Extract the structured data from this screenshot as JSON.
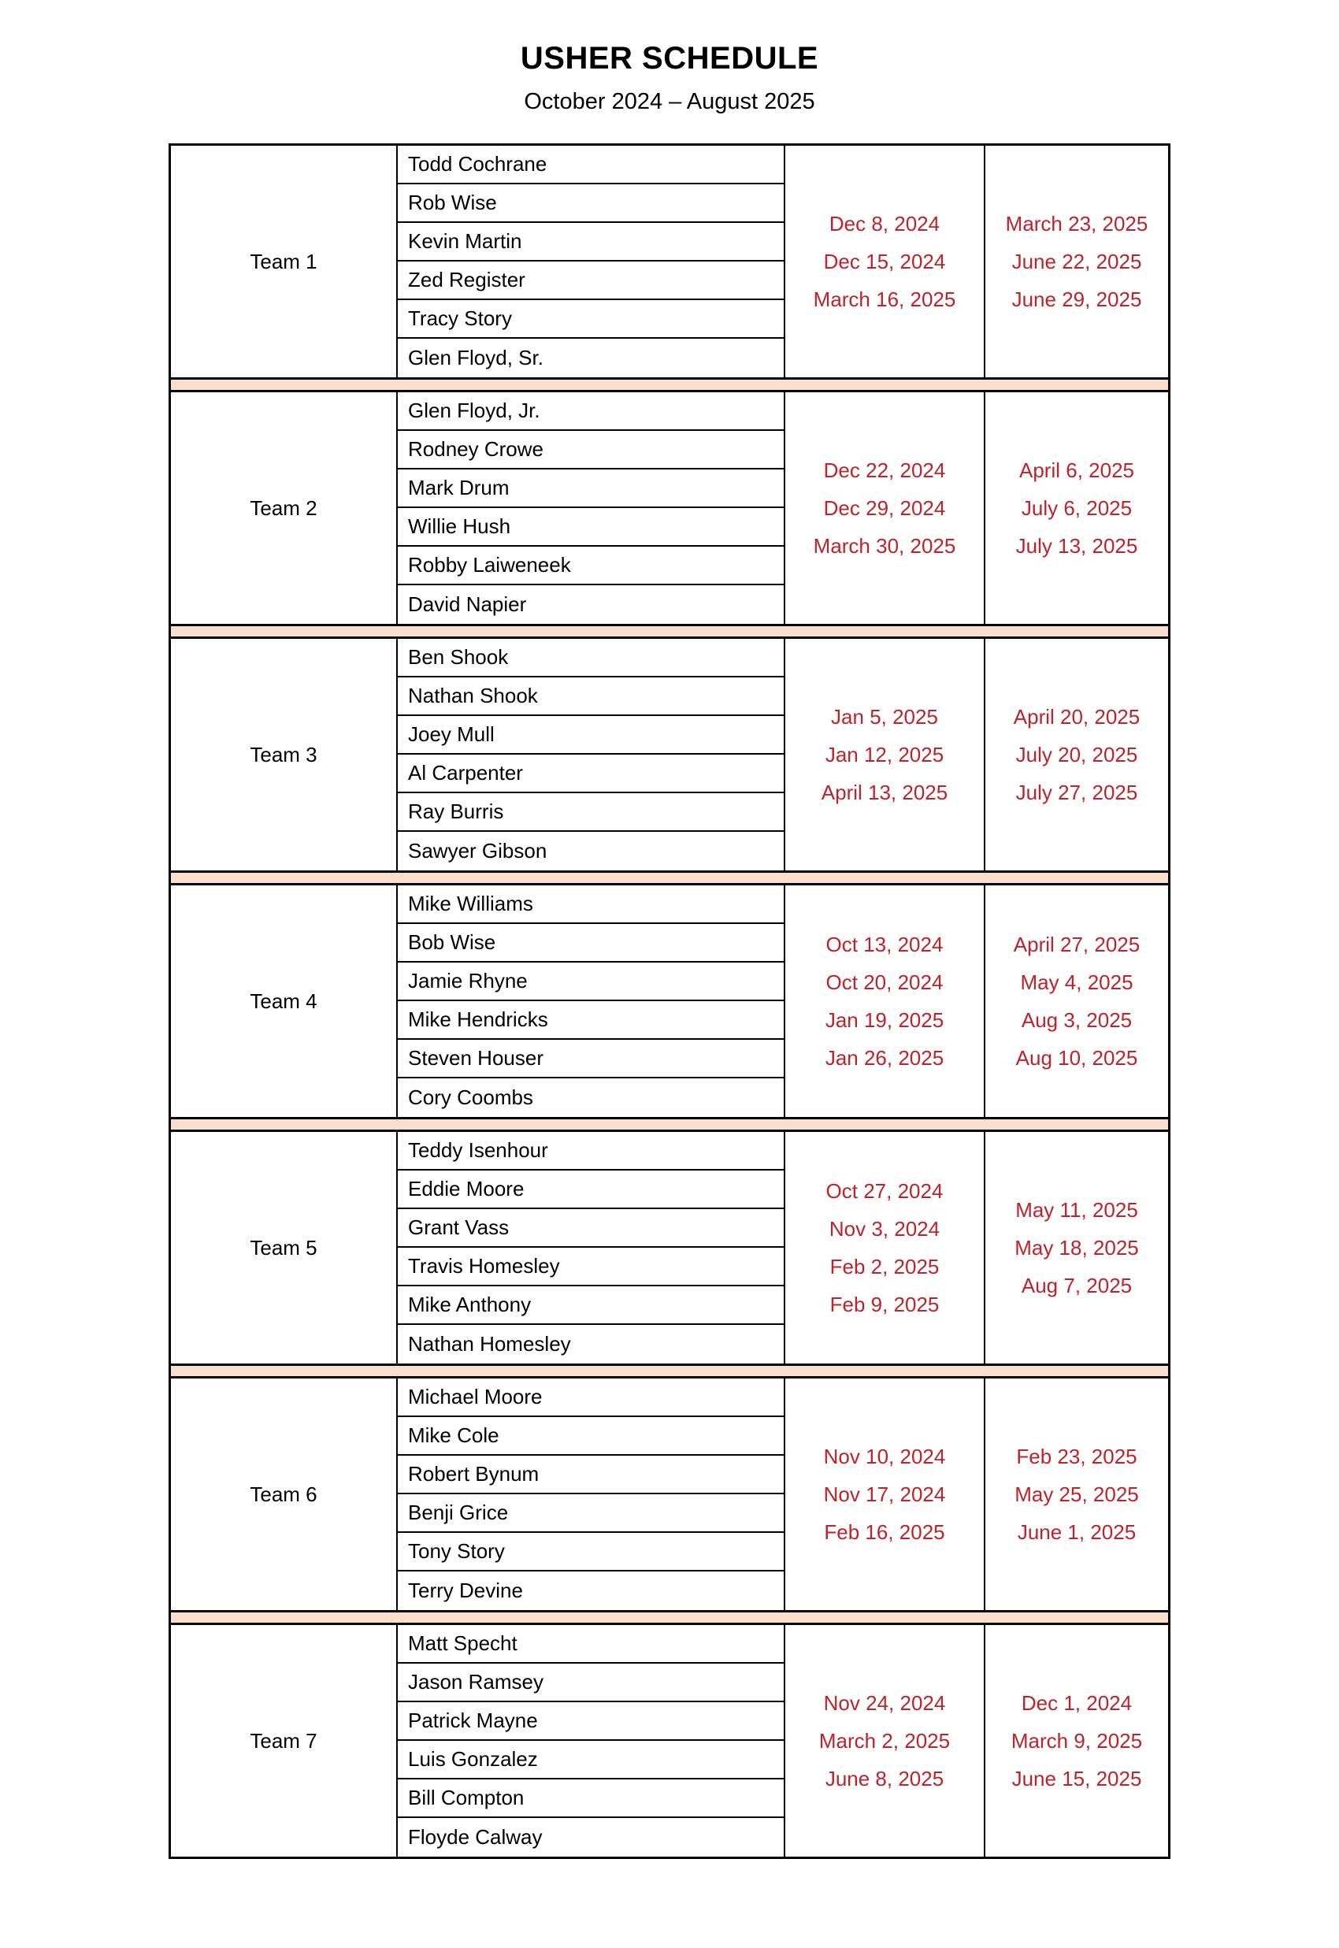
{
  "page": {
    "title": "USHER SCHEDULE",
    "subtitle": "October 2024 – August 2025"
  },
  "colors": {
    "date_text_red": "#C0222A",
    "separator_peach": "#FBDFCD",
    "table_border_black": "#000000",
    "page_background": "#FFFFFF"
  },
  "teams": [
    {
      "name": "Team 1",
      "members": [
        "Todd Cochrane",
        "Rob Wise",
        "Kevin Martin",
        "Zed Register",
        "Tracy Story",
        "Glen Floyd, Sr."
      ],
      "dates_first": [
        "Dec 8, 2024",
        "Dec 15, 2024",
        "March 16, 2025"
      ],
      "dates_second": [
        "March 23, 2025",
        "June 22, 2025",
        "June 29, 2025"
      ]
    },
    {
      "name": "Team 2",
      "members": [
        "Glen Floyd, Jr.",
        "Rodney Crowe",
        "Mark Drum",
        "Willie Hush",
        "Robby Laiweneek",
        "David Napier"
      ],
      "dates_first": [
        "Dec 22, 2024",
        "Dec 29, 2024",
        "March 30, 2025"
      ],
      "dates_second": [
        "April 6, 2025",
        "July 6, 2025",
        "July 13, 2025"
      ]
    },
    {
      "name": "Team 3",
      "members": [
        "Ben Shook",
        "Nathan Shook",
        "Joey Mull",
        "Al Carpenter",
        "Ray Burris",
        "Sawyer Gibson"
      ],
      "dates_first": [
        "Jan 5, 2025",
        "Jan 12, 2025",
        "April 13, 2025"
      ],
      "dates_second": [
        "April 20, 2025",
        "July 20, 2025",
        "July 27, 2025"
      ]
    },
    {
      "name": "Team 4",
      "members": [
        "Mike Williams",
        "Bob Wise",
        "Jamie Rhyne",
        "Mike Hendricks",
        "Steven Houser",
        "Cory Coombs"
      ],
      "dates_first": [
        "Oct 13, 2024",
        "Oct 20, 2024",
        "Jan 19, 2025",
        "Jan 26, 2025"
      ],
      "dates_second": [
        "April 27, 2025",
        "May 4, 2025",
        "Aug 3, 2025",
        "Aug 10, 2025"
      ]
    },
    {
      "name": "Team 5",
      "members": [
        "Teddy Isenhour",
        "Eddie Moore",
        "Grant Vass",
        "Travis Homesley",
        "Mike Anthony",
        "Nathan Homesley"
      ],
      "dates_first": [
        "Oct 27, 2024",
        "Nov 3, 2024",
        "Feb 2, 2025",
        "Feb 9, 2025"
      ],
      "dates_second": [
        "May 11, 2025",
        "May 18, 2025",
        "Aug 7, 2025"
      ]
    },
    {
      "name": "Team 6",
      "members": [
        "Michael Moore",
        "Mike Cole",
        "Robert Bynum",
        "Benji Grice",
        "Tony Story",
        "Terry Devine"
      ],
      "dates_first": [
        "Nov 10, 2024",
        "Nov 17, 2024",
        "Feb 16, 2025"
      ],
      "dates_second": [
        "Feb 23, 2025",
        "May 25, 2025",
        "June 1, 2025"
      ]
    },
    {
      "name": "Team 7",
      "members": [
        "Matt Specht",
        "Jason Ramsey",
        "Patrick Mayne",
        "Luis Gonzalez",
        "Bill Compton",
        "Floyde Calway"
      ],
      "dates_first": [
        "Nov 24, 2024",
        "March 2, 2025",
        "June 8, 2025"
      ],
      "dates_second": [
        "Dec 1, 2024",
        "March 9, 2025",
        "June 15, 2025"
      ]
    }
  ]
}
